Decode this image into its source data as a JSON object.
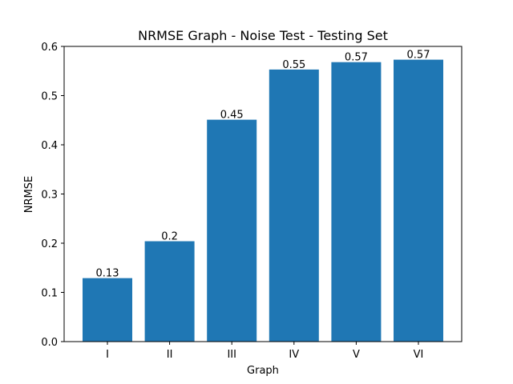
{
  "chart_data": {
    "type": "bar",
    "title": "NRMSE Graph - Noise Test - Testing Set",
    "xlabel": "Graph",
    "ylabel": "NRMSE",
    "categories": [
      "I",
      "II",
      "III",
      "IV",
      "V",
      "VI"
    ],
    "values": [
      0.129,
      0.204,
      0.451,
      0.553,
      0.568,
      0.573
    ],
    "data_labels": [
      "0.13",
      "0.2",
      "0.45",
      "0.55",
      "0.57",
      "0.57"
    ],
    "ylim": [
      0,
      0.6
    ],
    "yticks": [
      "0.0",
      "0.1",
      "0.2",
      "0.3",
      "0.4",
      "0.5",
      "0.6"
    ],
    "bar_color": "#1f77b4",
    "grid": false,
    "legend": "none"
  }
}
